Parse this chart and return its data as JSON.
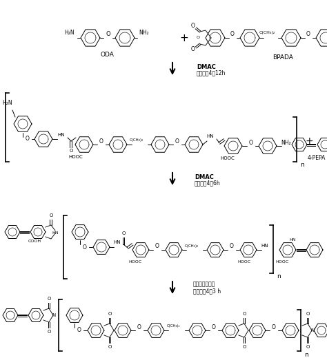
{
  "bg_color": "#ffffff",
  "fig_width": 4.74,
  "fig_height": 5.23,
  "dpi": 100,
  "arrow1_label1": "DMAC",
  "arrow1_label2": "室温搞我4种12h",
  "arrow2_label1": "DMAC",
  "arrow2_label2": "室温搞我4种6h",
  "arrow3_label1": "三乙胺、乙酸钐",
  "arrow3_label2": "室温搞我4种3 h",
  "ODA_label": "ODA",
  "BPADA_label": "BPADA",
  "PEPA_label": "4-PEPA"
}
